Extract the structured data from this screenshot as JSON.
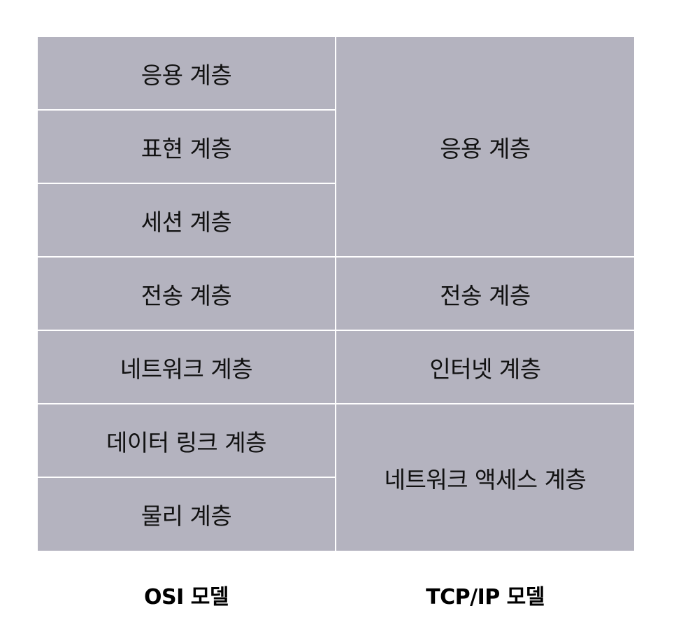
{
  "osi_model": {
    "caption": "OSI 모델",
    "layers": [
      "응용 계층",
      "표현 계층",
      "세션 계층",
      "전송 계층",
      "네트워크 계층",
      "데이터 링크 계층",
      "물리 계층"
    ]
  },
  "tcpip_model": {
    "caption": "TCP/IP 모델",
    "layers": [
      "응용 계층",
      "전송 계층",
      "인터넷 계층",
      "네트워크 액세스 계층"
    ]
  },
  "colors": {
    "cell_fill": "#b4b3bf",
    "divider": "#ffffff",
    "text": "#111111"
  }
}
